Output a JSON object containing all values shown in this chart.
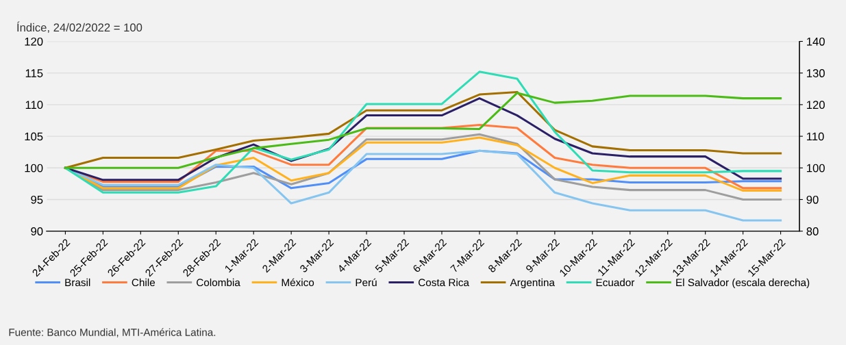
{
  "chart_data": {
    "type": "line",
    "ylabel": "Índice, 24/02/2022 = 100",
    "categories": [
      "24-Feb-22",
      "25-Feb-22",
      "26-Feb-22",
      "27-Feb-22",
      "28-Feb-22",
      "1-Mar-22",
      "2-Mar-22",
      "3-Mar-22",
      "4-Mar-22",
      "5-Mar-22",
      "6-Mar-22",
      "7-Mar-22",
      "8-Mar-22",
      "9-Mar-22",
      "10-Mar-22",
      "11-Mar-22",
      "12-Mar-22",
      "13-Mar-22",
      "14-Mar-22",
      "15-Mar-22"
    ],
    "series": [
      {
        "name": "Brasil",
        "color": "#4f8ff7",
        "values": [
          100,
          97,
          97,
          97,
          100.2,
          100.2,
          96.8,
          97.6,
          101.4,
          101.4,
          101.4,
          102.7,
          102.3,
          98.2,
          98.2,
          97.7,
          97.7,
          97.7,
          97.9,
          97.9
        ]
      },
      {
        "name": "Chile",
        "color": "#ff7a3d",
        "values": [
          100,
          97.8,
          97.8,
          97.8,
          102.7,
          102.7,
          100.5,
          100.5,
          106.3,
          106.3,
          106.3,
          106.8,
          106.3,
          101.6,
          100.5,
          100,
          100,
          100,
          96.8,
          96.8
        ]
      },
      {
        "name": "Colombia",
        "color": "#9e9e9e",
        "values": [
          100,
          96.5,
          96.5,
          96.5,
          97.7,
          99.2,
          97.4,
          99.2,
          104.5,
          104.5,
          104.5,
          105.3,
          103.8,
          98.2,
          97,
          96.5,
          96.5,
          96.5,
          95,
          95
        ]
      },
      {
        "name": "México",
        "color": "#ffb21e",
        "values": [
          100,
          96.8,
          96.8,
          96.8,
          100.4,
          101.6,
          98,
          99.2,
          104,
          104,
          104,
          104.8,
          103.6,
          100,
          97.6,
          98.8,
          98.8,
          98.8,
          96.4,
          96.4
        ]
      },
      {
        "name": "Perú",
        "color": "#86c5ef",
        "values": [
          100,
          97.3,
          97.3,
          97.3,
          100.5,
          100,
          94.4,
          96.1,
          102.2,
          102.2,
          102.2,
          102.7,
          102.2,
          96.1,
          94.4,
          93.3,
          93.3,
          93.3,
          91.7,
          91.7
        ]
      },
      {
        "name": "Costa Rica",
        "color": "#2b1f66",
        "values": [
          100,
          98.1,
          98.1,
          98.1,
          101.6,
          103.7,
          101.1,
          103,
          108.3,
          108.3,
          108.3,
          111,
          108.3,
          104.6,
          102.3,
          101.8,
          101.8,
          101.8,
          98.3,
          98.3
        ]
      },
      {
        "name": "Argentina",
        "color": "#a26f00",
        "values": [
          100,
          101.6,
          101.6,
          101.6,
          102.9,
          104.3,
          104.8,
          105.4,
          109.1,
          109.1,
          109.1,
          111.6,
          112,
          106,
          103.4,
          102.8,
          102.8,
          102.8,
          102.3,
          102.3
        ]
      },
      {
        "name": "Ecuador",
        "color": "#2fdcb5",
        "values": [
          100,
          96.1,
          96.1,
          96.1,
          97.1,
          103.2,
          101.3,
          102.9,
          110.1,
          110.1,
          110.1,
          115.2,
          114.1,
          105.7,
          99.6,
          99.3,
          99.3,
          99.3,
          99.5,
          99.5
        ]
      },
      {
        "name": "El Salvador (escala derecha)",
        "color": "#4cbb17",
        "axis": "y2",
        "values": [
          100,
          100,
          100,
          100,
          103.3,
          106.2,
          107.6,
          108.9,
          112.5,
          112.5,
          112.5,
          112.3,
          123.7,
          120.6,
          121.2,
          122.8,
          122.8,
          122.8,
          122,
          122
        ]
      }
    ],
    "ylim": [
      90,
      120
    ],
    "yticks": [
      90,
      95,
      100,
      105,
      110,
      115,
      120
    ],
    "y2lim": [
      80,
      140
    ],
    "y2ticks": [
      80,
      90,
      100,
      110,
      120,
      130,
      140
    ],
    "grid": "y",
    "legend": "bottom",
    "line_style": "solid",
    "marker": "none",
    "annotations": [
      "Fuente: Banco Mundial, MTI-América Latina."
    ]
  }
}
